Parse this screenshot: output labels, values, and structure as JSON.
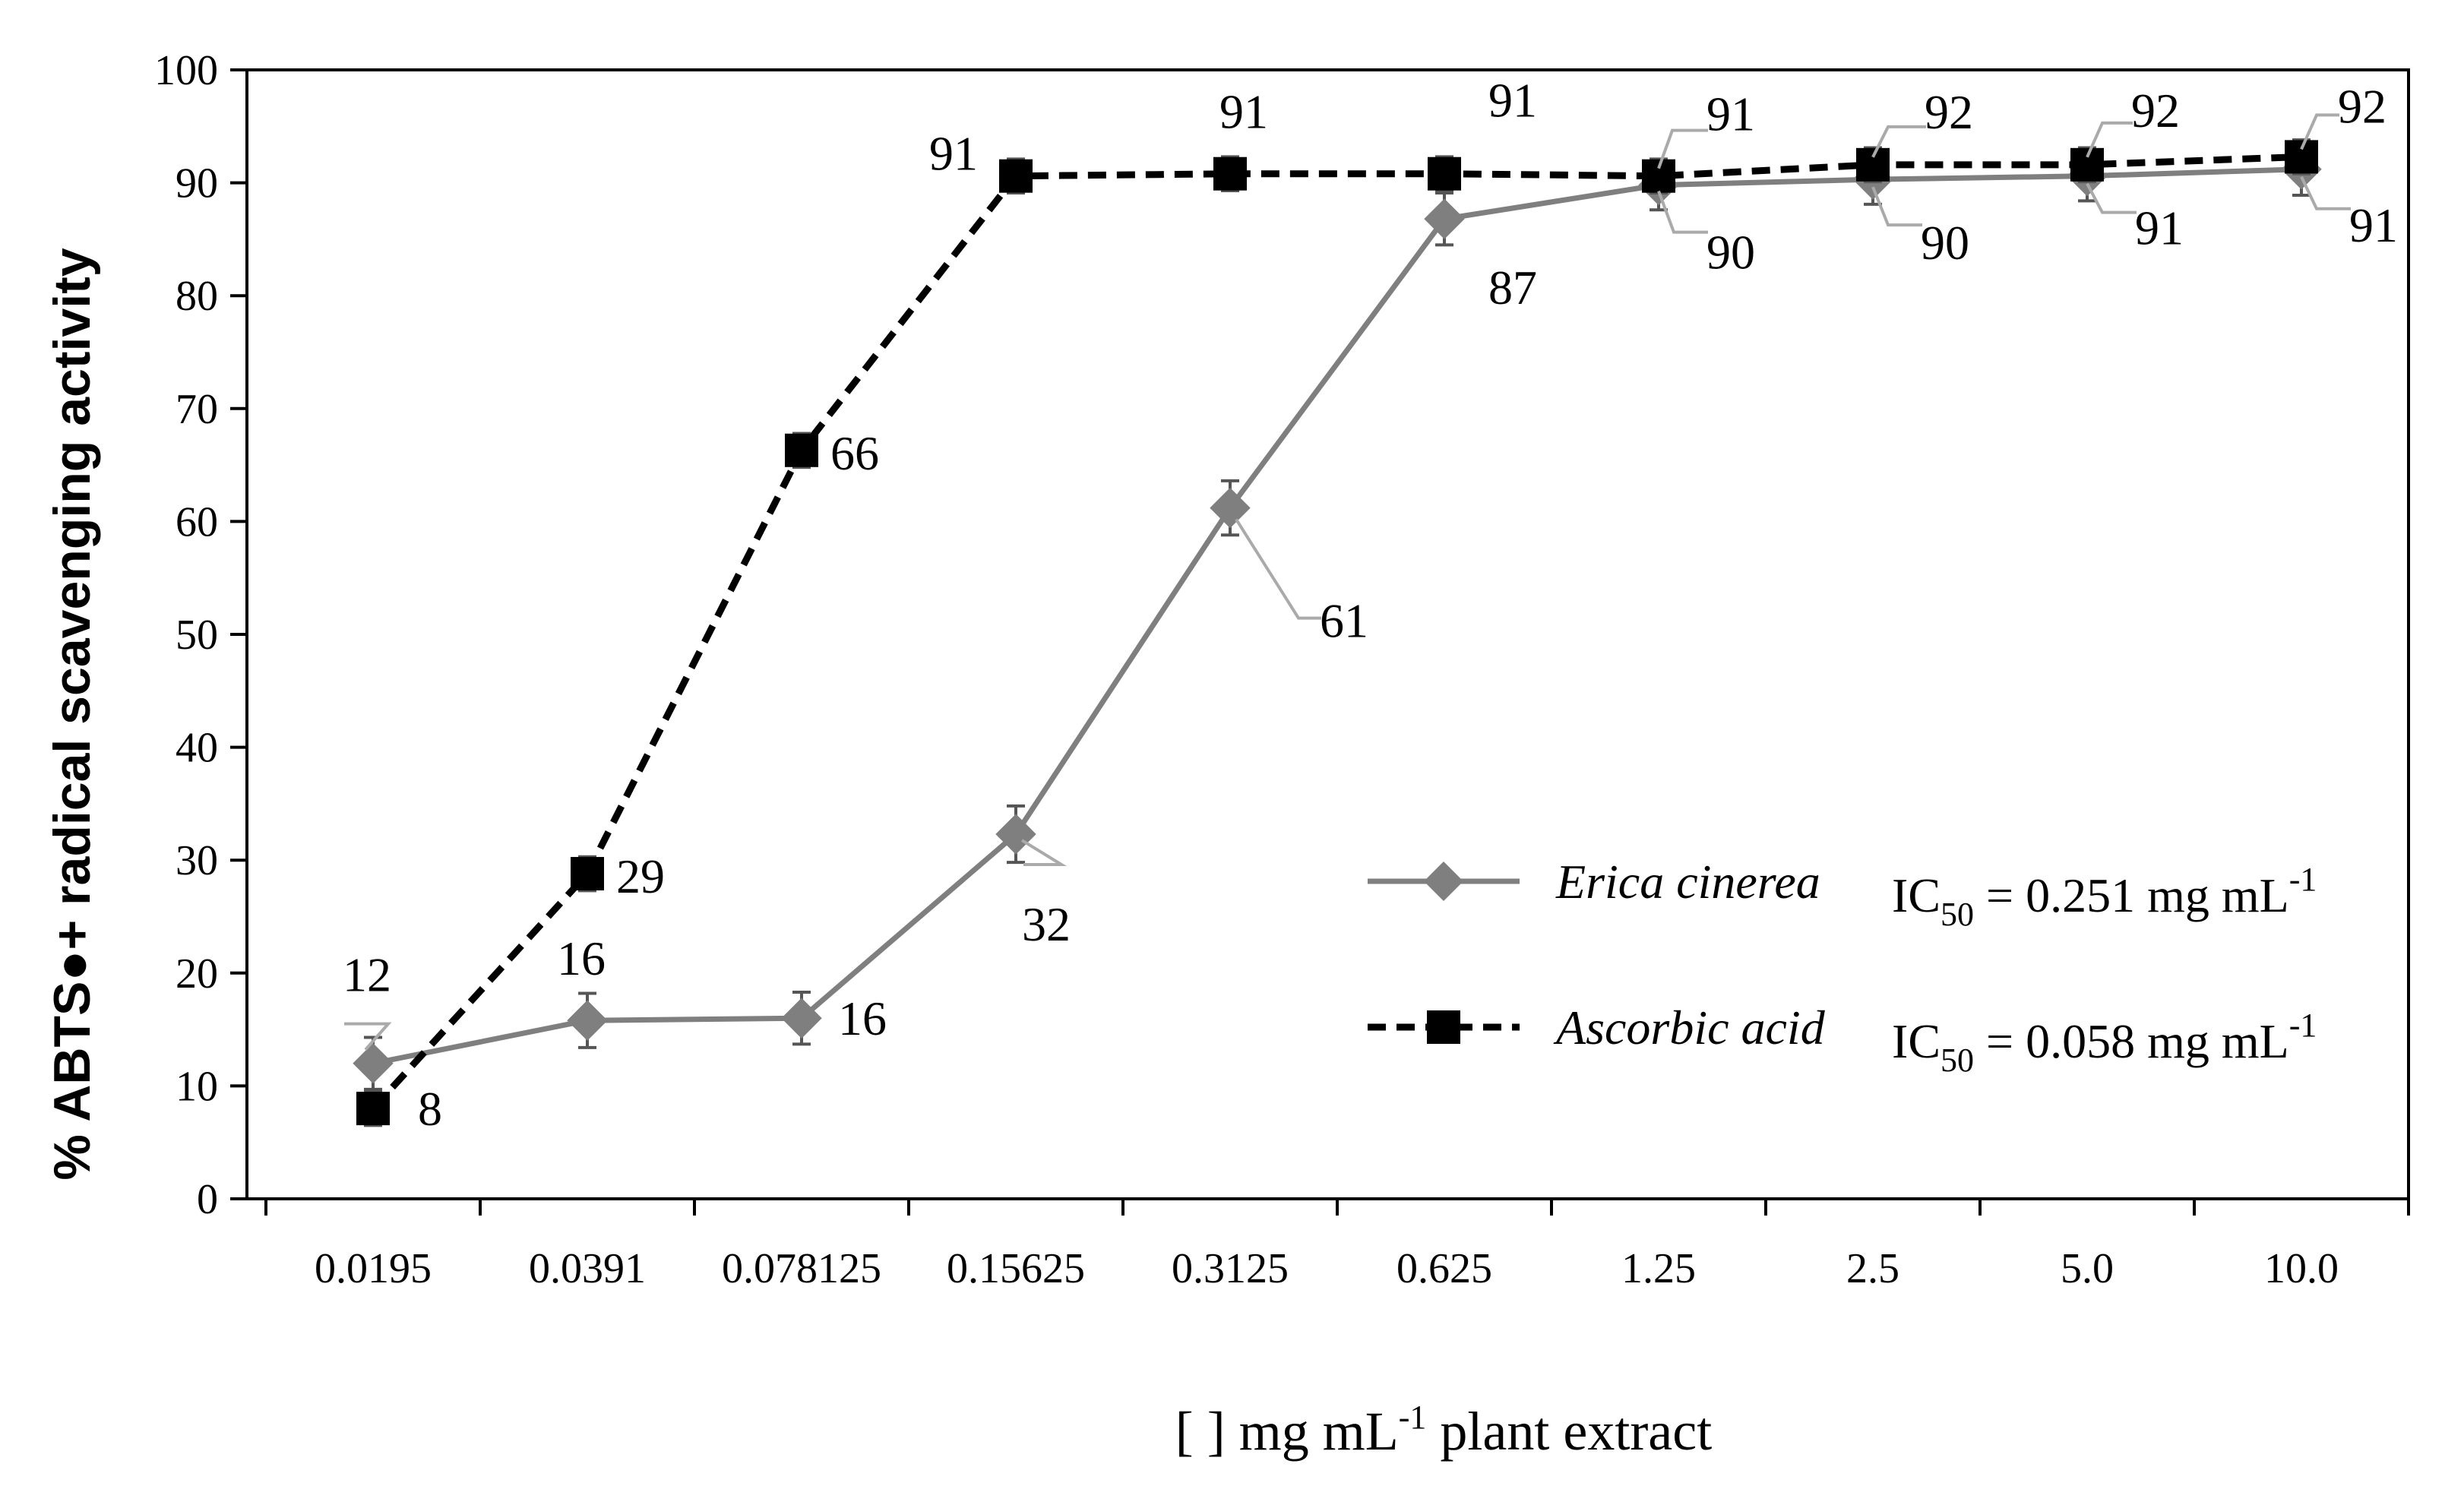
{
  "chart_data": {
    "type": "line",
    "title": "",
    "xlabel_parts": [
      "[ ] mg mL",
      "-1",
      " plant extract"
    ],
    "ylabel": "% ABTS●+ radical scavenging activity",
    "ylim": [
      0,
      100
    ],
    "yticks": [
      0,
      10,
      20,
      30,
      40,
      50,
      60,
      70,
      80,
      90,
      100
    ],
    "categories": [
      "0.0195",
      "0.0391",
      "0.078125",
      "0.15625",
      "0.3125",
      "0.625",
      "1.25",
      "2.5",
      "5.0",
      "10.0"
    ],
    "series": [
      {
        "name": "Erica cinerea",
        "marker": "diamond",
        "line": "solid",
        "color": "#7f7f7f",
        "values": [
          12,
          15.8,
          16,
          32.3,
          61.2,
          86.8,
          89.8,
          90.3,
          90.6,
          91.2
        ],
        "errors": [
          2.3,
          2.4,
          2.3,
          2.5,
          2.4,
          2.3,
          2.2,
          2.2,
          2.2,
          2.3
        ],
        "labels": [
          "12",
          "16",
          "16",
          "32",
          "61",
          "87",
          "90",
          "90",
          "91",
          "91"
        ],
        "ic50_parts": [
          "IC",
          "50",
          " = 0.251 mg mL",
          "-1"
        ]
      },
      {
        "name": "Ascorbic acid",
        "marker": "square",
        "line": "dashed",
        "color": "#000000",
        "values": [
          8,
          28.8,
          66.3,
          90.6,
          90.8,
          90.8,
          90.6,
          91.6,
          91.6,
          92.3
        ],
        "errors": [
          1.5,
          1.5,
          1.5,
          1.5,
          1.5,
          1.5,
          1.5,
          1.5,
          1.5,
          1.5
        ],
        "labels": [
          "8",
          "29",
          "66",
          "91",
          "91",
          "91",
          "91",
          "92",
          "92",
          "92"
        ],
        "ic50_parts": [
          "IC",
          "50",
          " = 0.058 mg mL",
          "-1"
        ]
      }
    ],
    "legend": "right-center",
    "grid": false
  }
}
